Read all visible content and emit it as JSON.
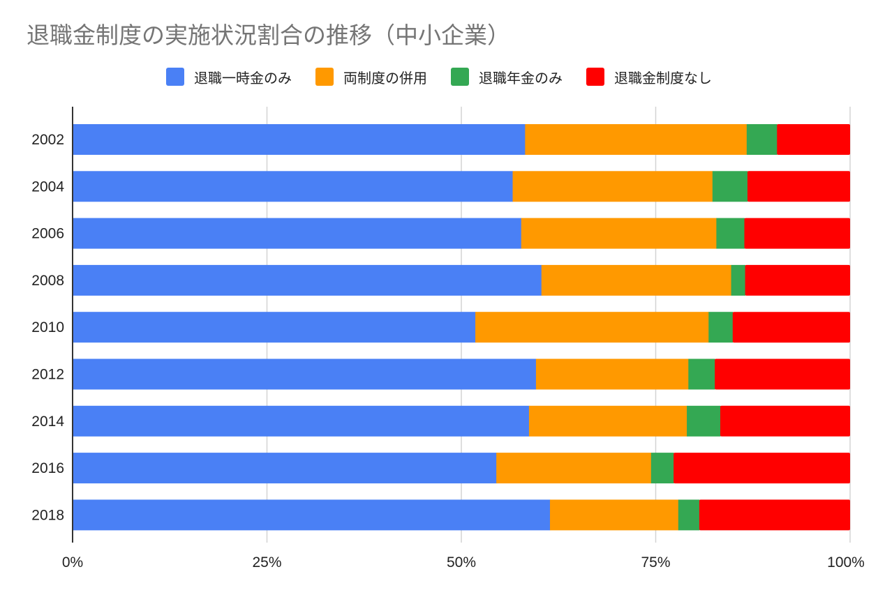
{
  "chart_data": {
    "type": "bar",
    "orientation": "horizontal",
    "stacked": "percent",
    "title": "退職金制度の実施状況割合の推移（中小企業）",
    "categories": [
      "2002",
      "2004",
      "2006",
      "2008",
      "2010",
      "2012",
      "2014",
      "2016",
      "2018"
    ],
    "series": [
      {
        "name": "退職一時金のみ",
        "color": "#4a80f5",
        "values": [
          58.2,
          56.6,
          57.7,
          60.3,
          51.8,
          59.6,
          58.7,
          54.5,
          61.4
        ]
      },
      {
        "name": "両制度の併用",
        "color": "#ff9900",
        "values": [
          28.5,
          25.7,
          25.1,
          24.4,
          30.0,
          19.6,
          20.3,
          19.9,
          16.5
        ]
      },
      {
        "name": "退職年金のみ",
        "color": "#34a853",
        "values": [
          3.9,
          4.5,
          3.6,
          1.8,
          3.1,
          3.4,
          4.3,
          2.9,
          2.7
        ]
      },
      {
        "name": "退職金制度なし",
        "color": "#ff0000",
        "values": [
          9.4,
          13.2,
          13.6,
          13.5,
          15.1,
          17.4,
          16.7,
          22.7,
          19.4
        ]
      }
    ],
    "xlim": [
      0,
      100
    ],
    "xticks": [
      "0%",
      "25%",
      "50%",
      "75%",
      "100%"
    ],
    "grid": true,
    "legend_position": "top-center"
  }
}
